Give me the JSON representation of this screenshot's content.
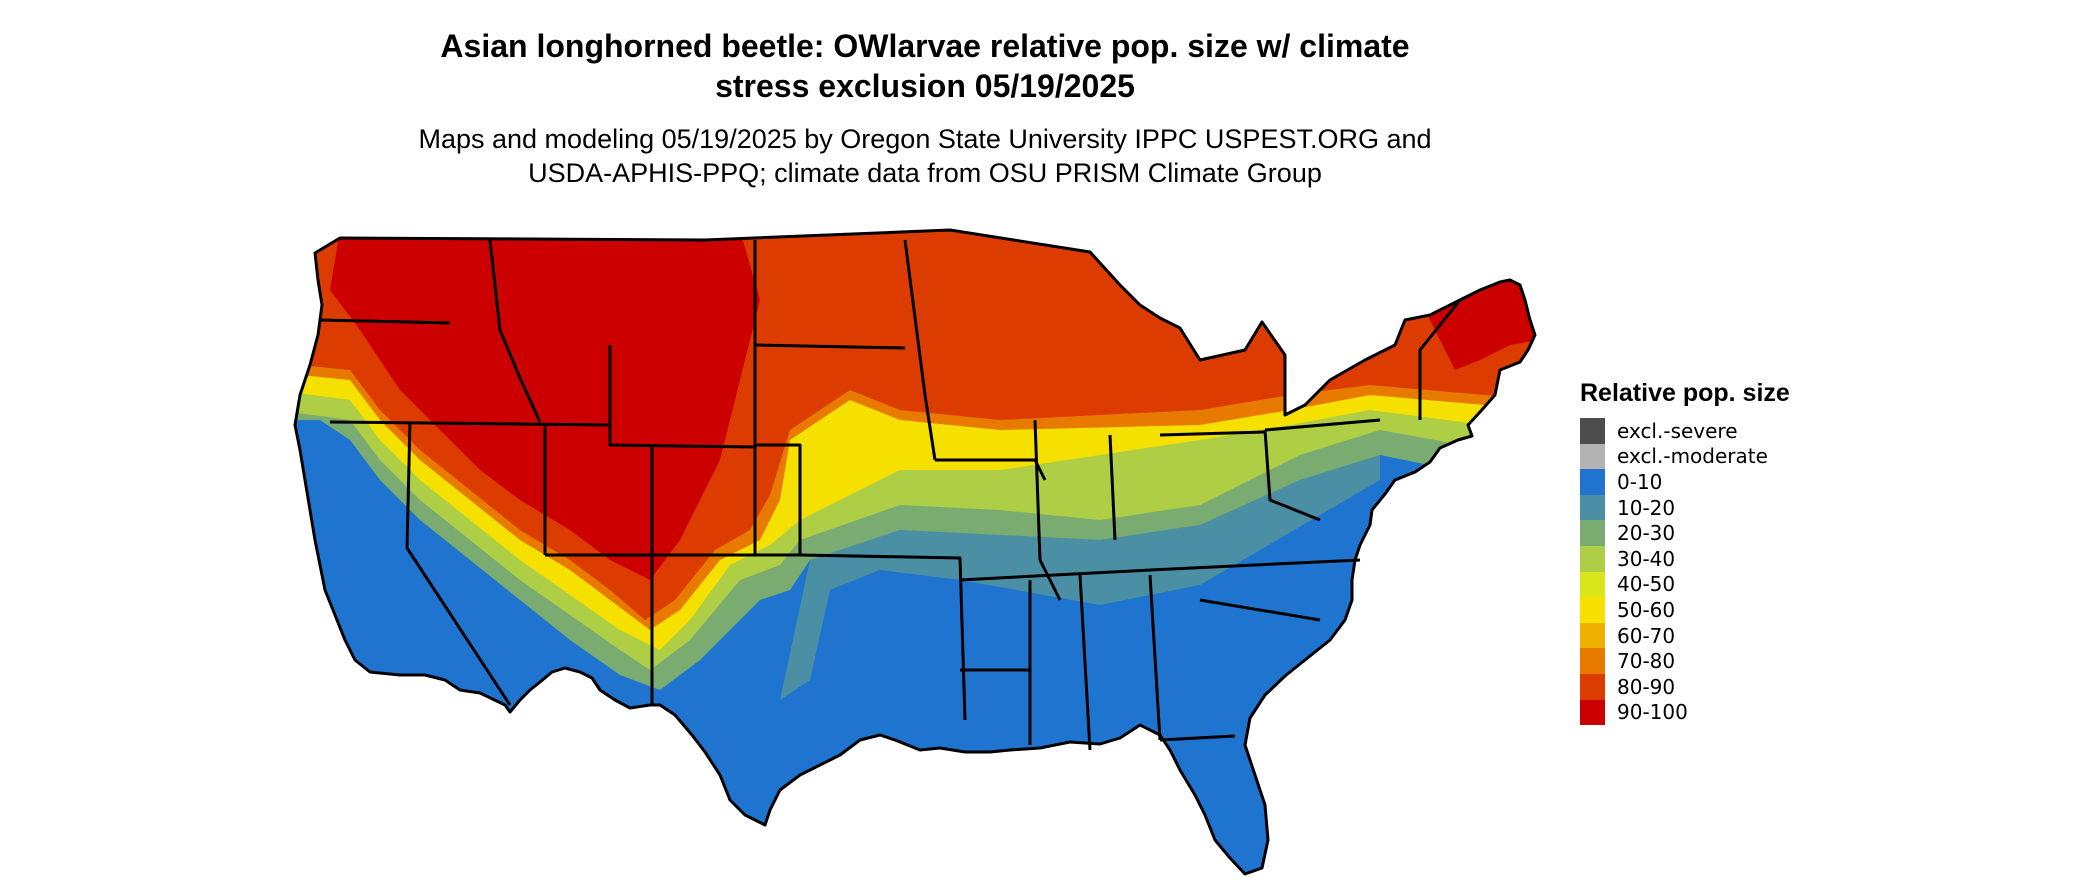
{
  "title": {
    "line1": "Asian longhorned beetle: OWlarvae relative pop. size w/ climate",
    "line2": "stress exclusion 05/19/2025"
  },
  "subtitle": {
    "line1": "Maps and modeling 05/19/2025 by Oregon State University IPPC USPEST.ORG and",
    "line2": "USDA-APHIS-PPQ; climate data from OSU PRISM Climate Group"
  },
  "legend": {
    "title": "Relative pop. size",
    "items": [
      {
        "label": "excl.-severe",
        "color": "#4d4d4d"
      },
      {
        "label": "excl.-moderate",
        "color": "#b3b3b3"
      },
      {
        "label": "0-10",
        "color": "#1f74cf"
      },
      {
        "label": "10-20",
        "color": "#4a8fa3"
      },
      {
        "label": "20-30",
        "color": "#7aab70"
      },
      {
        "label": "30-40",
        "color": "#aecf45"
      },
      {
        "label": "40-50",
        "color": "#d9e61a"
      },
      {
        "label": "50-60",
        "color": "#f5e000"
      },
      {
        "label": "60-70",
        "color": "#f0b000"
      },
      {
        "label": "70-80",
        "color": "#e87a00"
      },
      {
        "label": "80-90",
        "color": "#dc3c00"
      },
      {
        "label": "90-100",
        "color": "#cc0000"
      }
    ]
  }
}
